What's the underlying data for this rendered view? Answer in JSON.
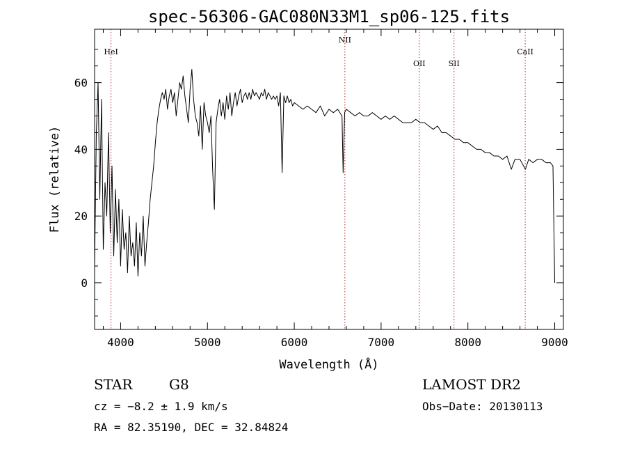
{
  "chart_data": {
    "type": "line",
    "title": "spec-56306-GAC080N33M1_sp06-125.fits",
    "xlabel": "Wavelength (Å)",
    "ylabel": "Flux (relative)",
    "xlim": [
      3700,
      9100
    ],
    "ylim": [
      -14,
      76
    ],
    "xticks": [
      4000,
      5000,
      6000,
      7000,
      8000,
      9000
    ],
    "xtick_labels": [
      "4000",
      "5000",
      "6000",
      "7000",
      "8000",
      "9000"
    ],
    "yticks": [
      0,
      20,
      40,
      60
    ],
    "ytick_labels": [
      "0",
      "20",
      "40",
      "60"
    ],
    "grid": false,
    "lines": [
      {
        "name": "HeI",
        "x": 3889
      },
      {
        "name": "NII",
        "x": 6583
      },
      {
        "name": "OII",
        "x": 7440
      },
      {
        "name": "SII",
        "x": 7840
      },
      {
        "name": "CaII",
        "x": 8660
      }
    ],
    "series": [
      {
        "x": [
          3700,
          3720,
          3740,
          3760,
          3780,
          3800,
          3820,
          3840,
          3860,
          3880,
          3900,
          3920,
          3940,
          3960,
          3980,
          4000,
          4020,
          4040,
          4060,
          4080,
          4100,
          4120,
          4140,
          4160,
          4180,
          4200,
          4220,
          4240,
          4260,
          4280,
          4300,
          4320,
          4340,
          4360,
          4380,
          4400,
          4420,
          4440,
          4460,
          4480,
          4500,
          4520,
          4540,
          4560,
          4580,
          4600,
          4620,
          4640,
          4660,
          4680,
          4700,
          4720,
          4740,
          4760,
          4780,
          4800,
          4820,
          4840,
          4860,
          4880,
          4900,
          4920,
          4940,
          4960,
          4980,
          5000,
          5020,
          5040,
          5060,
          5080,
          5100,
          5120,
          5140,
          5160,
          5180,
          5200,
          5220,
          5240,
          5260,
          5280,
          5300,
          5320,
          5340,
          5360,
          5380,
          5400,
          5420,
          5440,
          5460,
          5480,
          5500,
          5520,
          5540,
          5560,
          5580,
          5600,
          5620,
          5640,
          5660,
          5680,
          5700,
          5720,
          5740,
          5760,
          5780,
          5800,
          5820,
          5840,
          5860,
          5880,
          5890,
          5900,
          5920,
          5940,
          5960,
          5980,
          6000,
          6050,
          6100,
          6150,
          6200,
          6250,
          6300,
          6350,
          6400,
          6450,
          6500,
          6550,
          6563,
          6580,
          6600,
          6650,
          6700,
          6750,
          6800,
          6850,
          6900,
          6950,
          7000,
          7050,
          7100,
          7150,
          7200,
          7250,
          7300,
          7350,
          7400,
          7450,
          7500,
          7550,
          7600,
          7650,
          7700,
          7750,
          7800,
          7850,
          7900,
          7950,
          8000,
          8050,
          8100,
          8150,
          8200,
          8250,
          8300,
          8350,
          8400,
          8450,
          8500,
          8542,
          8600,
          8662,
          8700,
          8750,
          8800,
          8850,
          8900,
          8950,
          8980,
          9000
        ],
        "y": [
          5,
          45,
          60,
          25,
          55,
          10,
          30,
          20,
          45,
          15,
          35,
          8,
          28,
          12,
          25,
          5,
          22,
          10,
          15,
          3,
          20,
          8,
          12,
          5,
          18,
          2,
          15,
          8,
          20,
          5,
          12,
          18,
          25,
          30,
          35,
          42,
          48,
          52,
          55,
          57,
          55,
          58,
          52,
          56,
          58,
          54,
          57,
          50,
          55,
          60,
          58,
          62,
          56,
          52,
          48,
          58,
          64,
          55,
          50,
          48,
          44,
          53,
          40,
          54,
          50,
          48,
          45,
          50,
          34,
          22,
          48,
          52,
          55,
          50,
          54,
          49,
          56,
          52,
          57,
          50,
          54,
          57,
          53,
          56,
          58,
          54,
          56,
          57,
          55,
          57,
          55,
          58,
          56,
          57,
          56,
          55,
          57,
          56,
          58,
          55,
          57,
          56,
          55,
          56,
          55,
          56,
          53,
          57,
          33,
          56,
          55,
          54,
          56,
          54,
          55,
          53,
          54,
          53,
          52,
          53,
          52,
          51,
          53,
          50,
          52,
          51,
          52,
          50,
          33,
          51,
          52,
          51,
          50,
          51,
          50,
          50,
          51,
          50,
          49,
          50,
          49,
          50,
          49,
          48,
          48,
          48,
          49,
          48,
          48,
          47,
          46,
          47,
          45,
          45,
          44,
          43,
          43,
          42,
          42,
          41,
          40,
          40,
          39,
          39,
          38,
          38,
          37,
          38,
          34,
          37,
          37,
          34,
          37,
          36,
          37,
          37,
          36,
          36,
          35,
          0
        ]
      }
    ]
  },
  "footer": {
    "object_class": "STAR",
    "subclass": "G8",
    "survey": "LAMOST DR2",
    "velocity": "cz = −8.2 ± 1.9 km/s",
    "obs_date": "Obs−Date: 20130113",
    "coords": "RA =  82.35190, DEC =  32.84824"
  }
}
